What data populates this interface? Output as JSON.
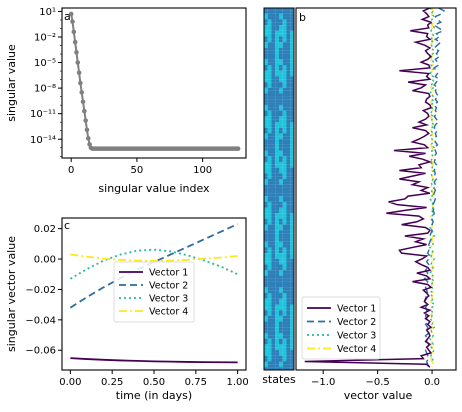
{
  "colors": {
    "grey_line": "#808080",
    "vector1": "#440154",
    "vector2": "#2b6ea0",
    "vector3": "#22b9a0",
    "vector4": "#fde725",
    "state_dark": "#2c7fb8",
    "state_light": "#1fc3da"
  },
  "chart_data": [
    {
      "panel": "a",
      "type": "line",
      "xlabel": "singular value index",
      "ylabel": "singular value",
      "yscale": "log",
      "xlim": [
        -7,
        133
      ],
      "ylim_exp": [
        -16.2,
        1.4
      ],
      "xticks": [
        {
          "v": 0,
          "label": "0"
        },
        {
          "v": 50,
          "label": "50"
        },
        {
          "v": 100,
          "label": "100"
        }
      ],
      "yticks": [
        {
          "e": 1,
          "label": "10¹"
        },
        {
          "e": -2,
          "label": "10⁻²"
        },
        {
          "e": -5,
          "label": "10⁻⁵"
        },
        {
          "e": -8,
          "label": "10⁻⁸"
        },
        {
          "e": -11,
          "label": "10⁻¹¹"
        },
        {
          "e": -14,
          "label": "10⁻¹⁴"
        }
      ],
      "series": [
        {
          "x": [
            0,
            1,
            2,
            3,
            4,
            5,
            6,
            7,
            8,
            9,
            10,
            11,
            12,
            13,
            14,
            15,
            16,
            17,
            18,
            19,
            20,
            21,
            22,
            23,
            24,
            25,
            26,
            27,
            28,
            29,
            30,
            31,
            32,
            33,
            34,
            35,
            36,
            37,
            38,
            39,
            40,
            41,
            42,
            43,
            44,
            45,
            46,
            47,
            48,
            49,
            50,
            51,
            52,
            53,
            54,
            55,
            56,
            57,
            58,
            59,
            60,
            61,
            62,
            63,
            64,
            65,
            66,
            67,
            68,
            69,
            70,
            71,
            72,
            73,
            74,
            75,
            76,
            77,
            78,
            79,
            80,
            81,
            82,
            83,
            84,
            85,
            86,
            87,
            88,
            89,
            90,
            91,
            92,
            93,
            94,
            95,
            96,
            97,
            98,
            99,
            100,
            101,
            102,
            103,
            104,
            105,
            106,
            107,
            108,
            109,
            110,
            111,
            112,
            113,
            114,
            115,
            116,
            117,
            118,
            119,
            120,
            121,
            122,
            123,
            124,
            125,
            126,
            127
          ],
          "y_exp": [
            0.7,
            -0.2,
            -1.4,
            -2.6,
            -3.8,
            -5.0,
            -6.2,
            -7.4,
            -8.5,
            -9.6,
            -10.7,
            -11.8,
            -12.9,
            -13.9,
            -14.6,
            -15.0,
            -15.1,
            -15.1,
            -15.1,
            -15.1,
            -15.1,
            -15.1,
            -15.1,
            -15.1,
            -15.1,
            -15.1,
            -15.1,
            -15.1,
            -15.1,
            -15.1,
            -15.1,
            -15.1,
            -15.1,
            -15.1,
            -15.1,
            -15.1,
            -15.1,
            -15.1,
            -15.1,
            -15.1,
            -15.1,
            -15.1,
            -15.1,
            -15.1,
            -15.1,
            -15.1,
            -15.1,
            -15.1,
            -15.1,
            -15.1,
            -15.1,
            -15.1,
            -15.1,
            -15.1,
            -15.1,
            -15.1,
            -15.1,
            -15.1,
            -15.1,
            -15.1,
            -15.1,
            -15.1,
            -15.1,
            -15.1,
            -15.1,
            -15.1,
            -15.1,
            -15.1,
            -15.1,
            -15.1,
            -15.1,
            -15.1,
            -15.1,
            -15.1,
            -15.1,
            -15.1,
            -15.1,
            -15.1,
            -15.1,
            -15.1,
            -15.1,
            -15.1,
            -15.1,
            -15.1,
            -15.1,
            -15.1,
            -15.1,
            -15.1,
            -15.1,
            -15.1,
            -15.1,
            -15.1,
            -15.1,
            -15.1,
            -15.1,
            -15.1,
            -15.1,
            -15.1,
            -15.1,
            -15.1,
            -15.1,
            -15.1,
            -15.1,
            -15.1,
            -15.1,
            -15.1,
            -15.1,
            -15.1,
            -15.1,
            -15.1,
            -15.1,
            -15.1,
            -15.1,
            -15.1,
            -15.1,
            -15.1,
            -15.1,
            -15.1,
            -15.1,
            -15.1,
            -15.1,
            -15.1,
            -15.1,
            -15.1,
            -15.1,
            -15.1,
            -15.1,
            -15.1
          ]
        }
      ]
    },
    {
      "panel": "c",
      "type": "line",
      "xlabel": "time (in days)",
      "ylabel": "singular vector value",
      "xlim": [
        -0.05,
        1.05
      ],
      "ylim": [
        -0.073,
        0.027
      ],
      "xticks": [
        {
          "v": 0,
          "label": "0.00"
        },
        {
          "v": 0.25,
          "label": "0.25"
        },
        {
          "v": 0.5,
          "label": "0.50"
        },
        {
          "v": 0.75,
          "label": "0.75"
        },
        {
          "v": 1,
          "label": "1.00"
        }
      ],
      "yticks": [
        {
          "v": 0.02,
          "label": "0.02"
        },
        {
          "v": 0,
          "label": "0.00"
        },
        {
          "v": -0.02,
          "label": "−0.02"
        },
        {
          "v": -0.04,
          "label": "−0.04"
        },
        {
          "v": -0.06,
          "label": "−0.06"
        }
      ],
      "legend_position": "center",
      "x": [
        0,
        0.1,
        0.2,
        0.3,
        0.4,
        0.5,
        0.6,
        0.7,
        0.8,
        0.9,
        1.0
      ],
      "series": [
        {
          "name": "Vector 1",
          "values": [
            -0.0652,
            -0.0658,
            -0.0663,
            -0.0667,
            -0.067,
            -0.0673,
            -0.0675,
            -0.0677,
            -0.0678,
            -0.0679,
            -0.068
          ]
        },
        {
          "name": "Vector 2",
          "values": [
            -0.032,
            -0.025,
            -0.0185,
            -0.0125,
            -0.007,
            -0.002,
            0.003,
            0.008,
            0.013,
            0.018,
            0.023
          ]
        },
        {
          "name": "Vector 3",
          "values": [
            -0.013,
            -0.0065,
            -0.001,
            0.003,
            0.0055,
            0.0062,
            0.005,
            0.0025,
            -0.001,
            -0.005,
            -0.01
          ]
        },
        {
          "name": "Vector 4",
          "values": [
            0.003,
            0.0015,
            0.0003,
            -0.0006,
            -0.001,
            -0.0012,
            -0.001,
            -0.0005,
            0.0002,
            0.001,
            0.002
          ]
        }
      ]
    },
    {
      "panel": "states",
      "type": "heatmap",
      "xlabel": "states",
      "rows": 127,
      "cols": 8
    },
    {
      "panel": "b",
      "type": "line",
      "xlabel": "vector value",
      "orientation": "horizontal",
      "xlim": [
        -1.25,
        0.22
      ],
      "ylim": [
        127,
        0
      ],
      "xticks": [
        {
          "v": -1.0,
          "label": "−1.0"
        },
        {
          "v": -0.5,
          "label": "−0.5"
        },
        {
          "v": 0,
          "label": "0.0"
        }
      ],
      "legend_position": "lower-left",
      "series": [
        {
          "name": "Vector 1",
          "values": [
            -0.02,
            -0.08,
            -0.05,
            -0.03,
            -0.09,
            -0.01,
            -0.04,
            -0.03,
            -0.2,
            -0.04,
            -0.05,
            -0.02,
            -0.15,
            -0.07,
            -0.02,
            -0.06,
            -0.04,
            -0.01,
            -0.04,
            -0.1,
            -0.03,
            -0.02,
            -0.3,
            -0.03,
            -0.05,
            -0.02,
            -0.22,
            -0.06,
            -0.1,
            -0.18,
            -0.03,
            -0.02,
            -0.05,
            -0.06,
            -0.02,
            -0.01,
            -0.08,
            -0.04,
            -0.03,
            -0.06,
            -0.12,
            -0.05,
            -0.18,
            -0.06,
            -0.03,
            -0.07,
            -0.12,
            -0.18,
            -0.07,
            -0.04,
            -0.35,
            -0.06,
            -0.21,
            -0.09,
            -0.02,
            -0.12,
            -0.1,
            -0.3,
            -0.06,
            -0.18,
            -0.3,
            -0.12,
            -0.18,
            -0.04,
            -0.1,
            -0.02,
            -0.22,
            -0.25,
            -0.4,
            -0.32,
            -0.05,
            -0.25,
            -0.42,
            -0.12,
            -0.08,
            -0.14,
            -0.28,
            -0.06,
            -0.02,
            -0.04,
            -0.25,
            -0.08,
            -0.15,
            -0.05,
            -0.18,
            -0.3,
            -0.28,
            -0.05,
            -0.09,
            -0.15,
            -0.1,
            -0.04,
            -0.02,
            -0.14,
            -0.05,
            -0.02,
            -0.18,
            -0.04,
            -0.01,
            -0.08,
            -0.05,
            -0.03,
            -0.06,
            -0.07,
            -0.04,
            -0.1,
            -0.02,
            -0.07,
            -0.03,
            -0.06,
            -0.02,
            -0.04,
            -0.01,
            -0.05,
            -0.03,
            -0.02,
            -0.04,
            -0.06,
            -0.02,
            -0.05,
            -0.03,
            -0.01,
            -0.1,
            -0.08,
            -1.17,
            -0.05,
            -0.02
          ]
        },
        {
          "name": "Vector 2",
          "values": [
            0.06,
            0.11,
            0.09,
            0.03,
            0.05,
            0.08,
            0.02,
            0.06,
            0.1,
            0.04,
            0.07,
            0.03,
            0.08,
            0.05,
            0.02,
            0.06,
            0.04,
            0.07,
            0.03,
            0.05,
            0.06,
            0.02,
            0.04,
            0.05,
            0.03,
            0.06,
            0.04,
            0.02,
            0.05,
            0.03,
            0.04,
            0.06,
            0.03,
            0.05,
            0.02,
            0.04,
            0.03,
            0.05,
            0.02,
            0.04,
            0.06,
            0.03,
            0.02,
            0.05,
            0.03,
            0.04,
            0.02,
            0.03,
            0.05,
            0.02,
            0.03,
            0.04,
            0.02,
            0.03,
            0.02,
            0.04,
            0.03,
            0.02,
            0.03,
            0.02,
            0.04,
            0.02,
            0.03,
            0.02,
            0.03,
            0.02,
            0.01,
            0.03,
            0.02,
            0.01,
            0.02,
            0.01,
            0.02,
            0.01,
            0.0,
            0.01,
            0.0,
            -0.01,
            0.0,
            -0.01,
            -0.02,
            -0.01,
            -0.02,
            -0.03,
            -0.02,
            -0.03,
            -0.04,
            -0.02,
            -0.03,
            -0.05,
            -0.03,
            -0.04,
            -0.06,
            -0.04,
            -0.05,
            -0.07,
            -0.04,
            -0.05,
            -0.06,
            -0.05,
            -0.04,
            -0.06,
            -0.05,
            -0.07,
            -0.04,
            -0.06,
            -0.05,
            -0.04,
            -0.06,
            -0.05,
            -0.03,
            -0.06,
            -0.04,
            -0.05,
            -0.03,
            -0.06,
            -0.04,
            -0.05,
            -0.03,
            -0.04,
            -0.06,
            -0.05,
            -0.04,
            -0.03,
            -0.05,
            -0.04,
            -0.03
          ]
        },
        {
          "name": "Vector 3",
          "values": [
            -0.02,
            0.01,
            -0.01,
            0.02,
            0.0,
            -0.02,
            0.01,
            0.02,
            -0.01,
            0.0,
            0.02,
            -0.02,
            0.01,
            0.0,
            -0.01,
            0.02,
            0.01,
            -0.02,
            0.0,
            0.01,
            -0.01,
            0.02,
            0.0,
            -0.02,
            0.01,
            0.0,
            0.02,
            -0.01,
            0.01,
            0.0,
            -0.02,
            0.01,
            0.0,
            0.02,
            -0.01,
            0.0,
            0.01,
            -0.02,
            0.01,
            0.0,
            -0.01,
            0.02,
            0.0,
            -0.01,
            0.01,
            -0.02,
            0.0,
            0.01,
            -0.01,
            0.02,
            0.0,
            -0.01,
            0.01,
            0.0,
            -0.02,
            0.01,
            0.0,
            0.02,
            -0.01,
            0.0,
            0.01,
            -0.01,
            0.0,
            0.02,
            -0.01,
            0.01,
            0.0,
            -0.02,
            0.01,
            0.0,
            0.01,
            -0.01,
            0.02,
            0.0,
            -0.01,
            0.01,
            0.0,
            -0.02,
            0.01,
            0.0,
            0.02,
            -0.01,
            0.0,
            0.01,
            -0.02,
            0.0,
            0.01,
            -0.01,
            0.02,
            0.0,
            -0.01,
            0.01,
            0.0,
            -0.02,
            0.01,
            0.0,
            0.02,
            -0.01,
            0.0,
            0.01,
            -0.02,
            0.0,
            0.01,
            -0.01,
            0.02,
            0.0,
            -0.01,
            0.01,
            0.0,
            -0.02,
            0.01,
            0.0,
            0.02,
            -0.01,
            0.0,
            0.01,
            -0.02,
            0.0,
            0.01,
            -0.01,
            0.02,
            0.0,
            -0.01,
            0.01,
            0.0
          ]
        },
        {
          "name": "Vector 4",
          "values": [
            0.0,
            0.01,
            0.0,
            -0.01,
            0.0,
            0.01,
            0.0,
            0.0,
            -0.01,
            0.0,
            0.01,
            0.0,
            0.0,
            -0.01,
            0.0,
            0.01,
            0.0,
            0.0,
            -0.01,
            0.0,
            0.01,
            0.0,
            0.0,
            -0.01,
            0.0,
            0.01,
            0.0,
            0.0,
            -0.01,
            0.0,
            0.01,
            0.0,
            0.0,
            -0.01,
            0.0,
            0.01,
            0.0,
            0.0,
            -0.01,
            0.0,
            0.01,
            0.0,
            0.0,
            -0.01,
            0.0,
            0.01,
            0.0,
            0.0,
            -0.01,
            0.0,
            0.01,
            0.0,
            0.0,
            -0.01,
            0.0,
            0.01,
            0.0,
            0.0,
            -0.01,
            0.0,
            0.01,
            0.0,
            0.0,
            -0.01,
            0.0,
            0.01,
            0.0,
            0.0,
            -0.01,
            0.0,
            0.01,
            0.0,
            0.0,
            -0.01,
            0.0,
            0.01,
            0.0,
            0.0,
            -0.01,
            0.0,
            0.01,
            0.0,
            0.0,
            -0.01,
            0.0,
            0.01,
            0.0,
            0.0,
            -0.01,
            0.0,
            0.01,
            0.0,
            0.0,
            -0.01,
            0.0,
            0.01,
            0.0,
            0.0,
            -0.01,
            0.0,
            0.01,
            0.0,
            0.0,
            -0.01,
            0.0,
            0.01,
            0.0,
            0.0,
            -0.01,
            0.0,
            0.01,
            0.0,
            0.0,
            -0.01,
            0.0,
            0.01,
            0.0,
            0.0,
            -0.01,
            0.0,
            0.01,
            0.0,
            0.0,
            -0.01,
            0.0,
            0.01,
            0.0
          ]
        }
      ]
    }
  ]
}
